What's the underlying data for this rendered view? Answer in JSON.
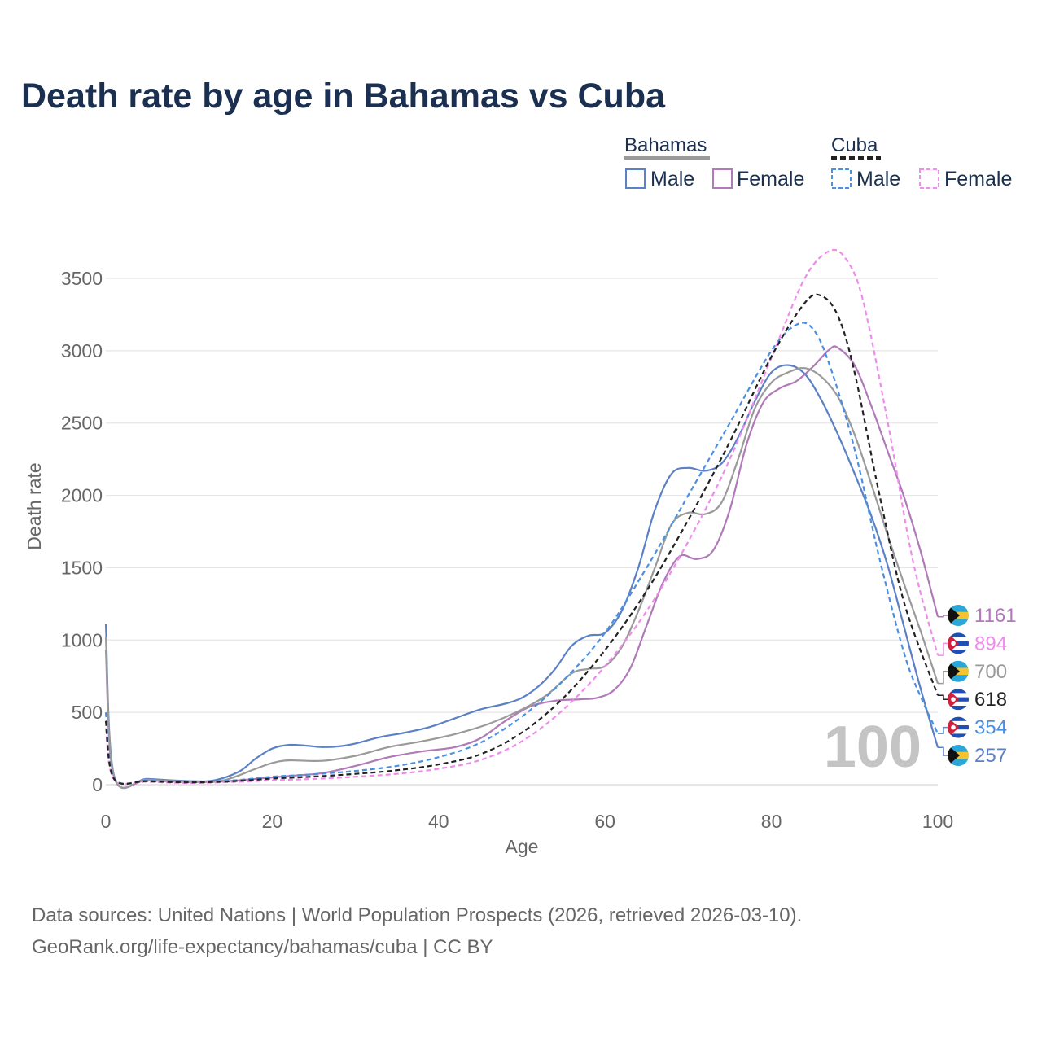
{
  "title": "Death rate by age in Bahamas vs Cuba",
  "legend": {
    "groups": [
      {
        "name": "Bahamas",
        "entries": [
          {
            "label": "Male"
          },
          {
            "label": "Female"
          }
        ]
      },
      {
        "name": "Cuba",
        "entries": [
          {
            "label": "Male"
          },
          {
            "label": "Female"
          }
        ]
      }
    ]
  },
  "footer": {
    "line1": "Data sources: United Nations | World Population Prospects (2026, retrieved 2026-03-10).",
    "line2": "GeoRank.org/life-expectancy/bahamas/cuba | CC BY"
  },
  "colors": {
    "title": "#1b3050",
    "bahamas_male": "#5b80c4",
    "bahamas_female": "#b07ab8",
    "bahamas_total": "#9a9a9a",
    "cuba_male": "#4a90e2",
    "cuba_female": "#f08cec",
    "cuba_total": "#222222",
    "grid": "#e6e6e6",
    "axis_text": "#666666",
    "watermark": "#c4c4c4"
  },
  "chart_data": {
    "type": "line",
    "title": "Death rate by age in Bahamas vs Cuba",
    "xlabel": "Age",
    "ylabel": "Death rate",
    "xlim": [
      0,
      100
    ],
    "ylim": [
      0,
      3500
    ],
    "xticks": [
      0,
      20,
      40,
      60,
      80,
      100
    ],
    "yticks": [
      0,
      500,
      1000,
      1500,
      2000,
      2500,
      3000,
      3500
    ],
    "grid": true,
    "year_label": "100",
    "series": [
      {
        "id": "bahamas_male",
        "name": "Bahamas Male",
        "country": "Bahamas",
        "dashed": false,
        "end_value": "257",
        "points": [
          [
            0,
            1110
          ],
          [
            1,
            60
          ],
          [
            5,
            40
          ],
          [
            10,
            25
          ],
          [
            13,
            30
          ],
          [
            16,
            90
          ],
          [
            18,
            180
          ],
          [
            20,
            250
          ],
          [
            22,
            275
          ],
          [
            24,
            270
          ],
          [
            26,
            260
          ],
          [
            28,
            265
          ],
          [
            30,
            285
          ],
          [
            33,
            330
          ],
          [
            36,
            360
          ],
          [
            39,
            400
          ],
          [
            42,
            460
          ],
          [
            45,
            520
          ],
          [
            48,
            560
          ],
          [
            50,
            600
          ],
          [
            52,
            680
          ],
          [
            54,
            800
          ],
          [
            56,
            960
          ],
          [
            58,
            1030
          ],
          [
            60,
            1050
          ],
          [
            62,
            1200
          ],
          [
            64,
            1500
          ],
          [
            66,
            1900
          ],
          [
            68,
            2150
          ],
          [
            70,
            2190
          ],
          [
            72,
            2170
          ],
          [
            74,
            2220
          ],
          [
            76,
            2400
          ],
          [
            78,
            2650
          ],
          [
            80,
            2850
          ],
          [
            82,
            2900
          ],
          [
            84,
            2840
          ],
          [
            86,
            2660
          ],
          [
            88,
            2420
          ],
          [
            90,
            2150
          ],
          [
            92,
            1860
          ],
          [
            94,
            1510
          ],
          [
            96,
            1080
          ],
          [
            98,
            650
          ],
          [
            100,
            257
          ]
        ]
      },
      {
        "id": "bahamas_female",
        "name": "Bahamas Female",
        "country": "Bahamas",
        "dashed": false,
        "end_value": "1161",
        "points": [
          [
            0,
            930
          ],
          [
            1,
            50
          ],
          [
            5,
            30
          ],
          [
            10,
            18
          ],
          [
            14,
            22
          ],
          [
            18,
            40
          ],
          [
            22,
            60
          ],
          [
            26,
            80
          ],
          [
            30,
            130
          ],
          [
            34,
            190
          ],
          [
            38,
            230
          ],
          [
            42,
            260
          ],
          [
            45,
            320
          ],
          [
            48,
            440
          ],
          [
            51,
            540
          ],
          [
            54,
            580
          ],
          [
            57,
            590
          ],
          [
            59,
            600
          ],
          [
            61,
            650
          ],
          [
            63,
            800
          ],
          [
            65,
            1100
          ],
          [
            67,
            1400
          ],
          [
            69,
            1580
          ],
          [
            71,
            1560
          ],
          [
            73,
            1620
          ],
          [
            75,
            1900
          ],
          [
            77,
            2350
          ],
          [
            79,
            2640
          ],
          [
            81,
            2740
          ],
          [
            83,
            2790
          ],
          [
            85,
            2890
          ],
          [
            87,
            3010
          ],
          [
            88,
            3020
          ],
          [
            90,
            2900
          ],
          [
            92,
            2620
          ],
          [
            94,
            2300
          ],
          [
            96,
            1980
          ],
          [
            98,
            1600
          ],
          [
            100,
            1161
          ]
        ]
      },
      {
        "id": "bahamas_total",
        "name": "Bahamas Total",
        "country": "Bahamas",
        "dashed": false,
        "end_value": "700",
        "points": [
          [
            0,
            1020
          ],
          [
            1,
            55
          ],
          [
            5,
            35
          ],
          [
            10,
            22
          ],
          [
            14,
            28
          ],
          [
            18,
            110
          ],
          [
            20,
            150
          ],
          [
            22,
            168
          ],
          [
            26,
            165
          ],
          [
            30,
            200
          ],
          [
            34,
            260
          ],
          [
            38,
            300
          ],
          [
            42,
            350
          ],
          [
            46,
            420
          ],
          [
            50,
            520
          ],
          [
            53,
            620
          ],
          [
            56,
            770
          ],
          [
            58,
            800
          ],
          [
            60,
            820
          ],
          [
            62,
            950
          ],
          [
            64,
            1200
          ],
          [
            66,
            1500
          ],
          [
            68,
            1800
          ],
          [
            70,
            1880
          ],
          [
            72,
            1870
          ],
          [
            74,
            1950
          ],
          [
            76,
            2250
          ],
          [
            78,
            2600
          ],
          [
            80,
            2780
          ],
          [
            82,
            2850
          ],
          [
            84,
            2880
          ],
          [
            86,
            2820
          ],
          [
            88,
            2680
          ],
          [
            90,
            2420
          ],
          [
            92,
            2080
          ],
          [
            94,
            1720
          ],
          [
            96,
            1380
          ],
          [
            98,
            1050
          ],
          [
            100,
            700
          ]
        ]
      },
      {
        "id": "cuba_male",
        "name": "Cuba Male",
        "country": "Cuba",
        "dashed": true,
        "end_value": "354",
        "points": [
          [
            0,
            500
          ],
          [
            1,
            45
          ],
          [
            5,
            28
          ],
          [
            10,
            20
          ],
          [
            15,
            28
          ],
          [
            20,
            55
          ],
          [
            25,
            72
          ],
          [
            30,
            95
          ],
          [
            35,
            130
          ],
          [
            40,
            190
          ],
          [
            45,
            290
          ],
          [
            50,
            470
          ],
          [
            55,
            720
          ],
          [
            60,
            1050
          ],
          [
            65,
            1500
          ],
          [
            70,
            2000
          ],
          [
            75,
            2500
          ],
          [
            80,
            3000
          ],
          [
            83,
            3180
          ],
          [
            85,
            3150
          ],
          [
            87,
            2900
          ],
          [
            90,
            2320
          ],
          [
            93,
            1560
          ],
          [
            96,
            900
          ],
          [
            98,
            600
          ],
          [
            100,
            354
          ]
        ]
      },
      {
        "id": "cuba_female",
        "name": "Cuba Female",
        "country": "Cuba",
        "dashed": true,
        "end_value": "894",
        "points": [
          [
            0,
            390
          ],
          [
            1,
            35
          ],
          [
            5,
            20
          ],
          [
            10,
            12
          ],
          [
            15,
            18
          ],
          [
            20,
            30
          ],
          [
            25,
            40
          ],
          [
            30,
            55
          ],
          [
            35,
            75
          ],
          [
            40,
            110
          ],
          [
            45,
            170
          ],
          [
            50,
            300
          ],
          [
            55,
            520
          ],
          [
            60,
            820
          ],
          [
            65,
            1200
          ],
          [
            70,
            1680
          ],
          [
            75,
            2250
          ],
          [
            80,
            2950
          ],
          [
            84,
            3500
          ],
          [
            87,
            3690
          ],
          [
            89,
            3630
          ],
          [
            91,
            3350
          ],
          [
            94,
            2500
          ],
          [
            97,
            1550
          ],
          [
            100,
            894
          ]
        ]
      },
      {
        "id": "cuba_total",
        "name": "Cuba Total",
        "country": "Cuba",
        "dashed": true,
        "end_value": "618",
        "points": [
          [
            0,
            440
          ],
          [
            1,
            40
          ],
          [
            5,
            24
          ],
          [
            10,
            16
          ],
          [
            15,
            23
          ],
          [
            20,
            42
          ],
          [
            25,
            56
          ],
          [
            30,
            75
          ],
          [
            35,
            100
          ],
          [
            40,
            140
          ],
          [
            45,
            210
          ],
          [
            50,
            360
          ],
          [
            55,
            600
          ],
          [
            60,
            930
          ],
          [
            65,
            1340
          ],
          [
            70,
            1830
          ],
          [
            75,
            2370
          ],
          [
            80,
            2960
          ],
          [
            84,
            3330
          ],
          [
            86,
            3380
          ],
          [
            88,
            3240
          ],
          [
            90,
            2850
          ],
          [
            93,
            2000
          ],
          [
            96,
            1250
          ],
          [
            100,
            618
          ]
        ]
      }
    ]
  }
}
